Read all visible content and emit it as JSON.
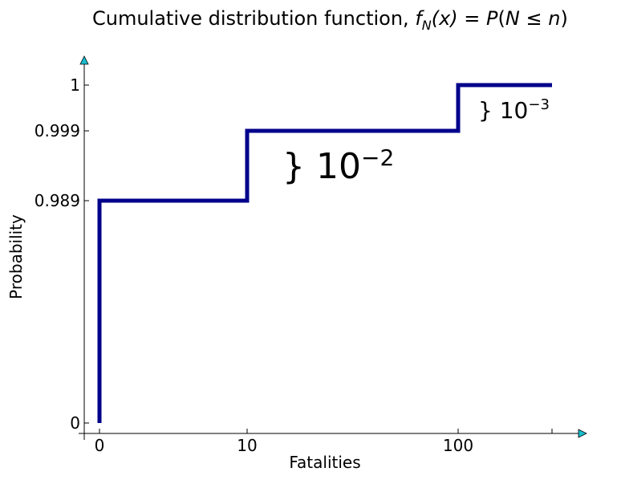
{
  "chart_data": {
    "type": "line",
    "step": "post",
    "title": "Cumulative distribution function, ",
    "title_math": {
      "f": "f",
      "sub": "N",
      "arg": "(x)",
      "eq": " = ",
      "P": "P",
      "open": "(",
      "N": "N",
      "le": " ≤ ",
      "n": "n",
      "close": ")"
    },
    "xlabel": "Fatalities",
    "ylabel": "Probability",
    "x_ticks": [
      "0",
      "10",
      "100"
    ],
    "y_ticks": [
      "0",
      "0.989",
      "0.999",
      "1"
    ],
    "series": [
      {
        "color": "#00008b",
        "points": [
          {
            "x": "0",
            "y": 0
          },
          {
            "x": "0",
            "y": 0.989
          },
          {
            "x": "10",
            "y": 0.989
          },
          {
            "x": "10",
            "y": 0.999
          },
          {
            "x": "100",
            "y": 0.999
          },
          {
            "x": "100",
            "y": 1
          },
          {
            "x": "end",
            "y": 1
          }
        ]
      }
    ],
    "annotations": [
      {
        "brace": "}",
        "base": "10",
        "exp": "−2"
      },
      {
        "brace": "}",
        "base": "10",
        "exp": "−3"
      }
    ],
    "axis_arrow_color": "#17becf",
    "grid": false
  }
}
